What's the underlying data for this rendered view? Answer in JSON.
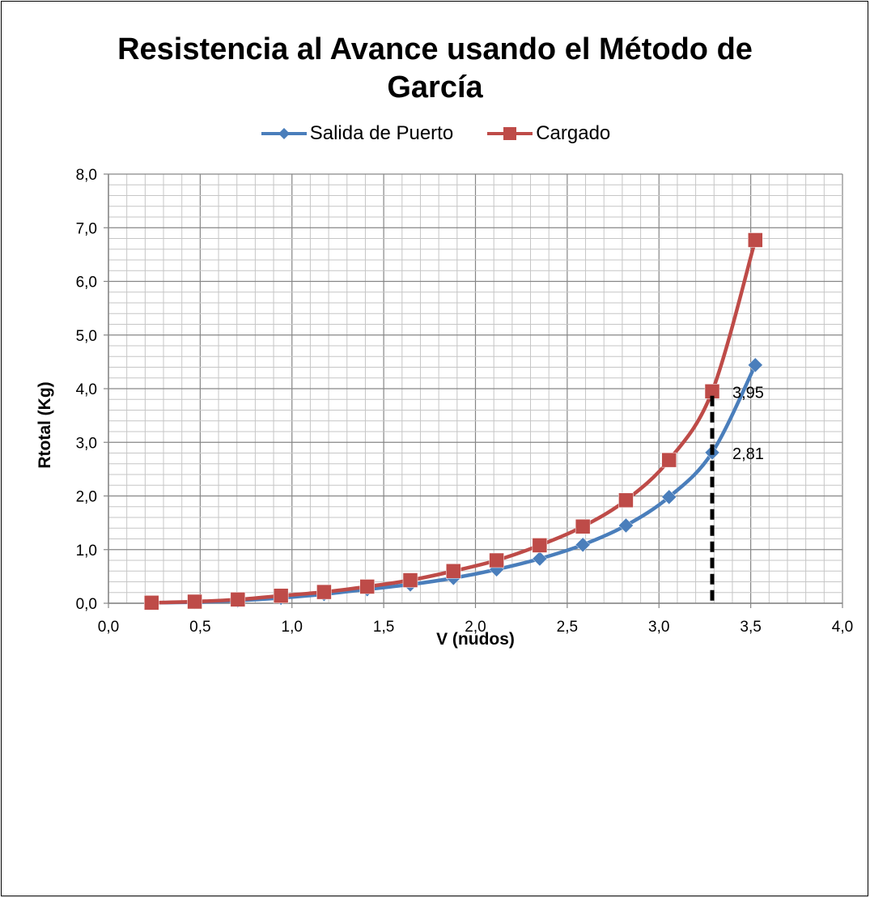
{
  "chart_data": {
    "type": "line",
    "title_lines": [
      "Resistencia al Avance usando el Método de",
      "García"
    ],
    "xlabel": "V (nudos)",
    "ylabel": "Rtotal (Kg)",
    "xlim": [
      0,
      4
    ],
    "ylim": [
      0,
      8
    ],
    "x_ticks": [
      "0,0",
      "0,5",
      "1,0",
      "1,5",
      "2,0",
      "2,5",
      "3,0",
      "3,5",
      "4,0"
    ],
    "y_ticks": [
      "0,0",
      "1,0",
      "2,0",
      "3,0",
      "4,0",
      "5,0",
      "6,0",
      "7,0",
      "8,0"
    ],
    "grid": true,
    "legend_position": "top",
    "series": [
      {
        "name": "Salida de Puerto",
        "color": "#4a7ebb",
        "marker": "diamond",
        "x": [
          0.235,
          0.47,
          0.705,
          0.94,
          1.175,
          1.41,
          1.645,
          1.88,
          2.115,
          2.35,
          2.585,
          2.82,
          3.055,
          3.29,
          3.525
        ],
        "y": [
          0.01,
          0.02,
          0.05,
          0.1,
          0.17,
          0.26,
          0.35,
          0.47,
          0.63,
          0.83,
          1.09,
          1.45,
          1.98,
          2.81,
          4.44
        ]
      },
      {
        "name": "Cargado",
        "color": "#be4b48",
        "marker": "square",
        "x": [
          0.235,
          0.47,
          0.705,
          0.94,
          1.175,
          1.41,
          1.645,
          1.88,
          2.115,
          2.35,
          2.585,
          2.82,
          3.055,
          3.29,
          3.525
        ],
        "y": [
          0.01,
          0.03,
          0.07,
          0.14,
          0.21,
          0.31,
          0.43,
          0.6,
          0.8,
          1.08,
          1.43,
          1.92,
          2.67,
          3.95,
          6.77
        ]
      }
    ],
    "annotations": [
      {
        "text": "3,95",
        "x": 3.29,
        "y": 3.95
      },
      {
        "text": "2,81",
        "x": 3.29,
        "y": 2.81
      }
    ],
    "reference_line": {
      "x": 3.29,
      "y_from": 0.05,
      "y_to": 3.95,
      "style": "dashed",
      "color": "#000000"
    }
  }
}
